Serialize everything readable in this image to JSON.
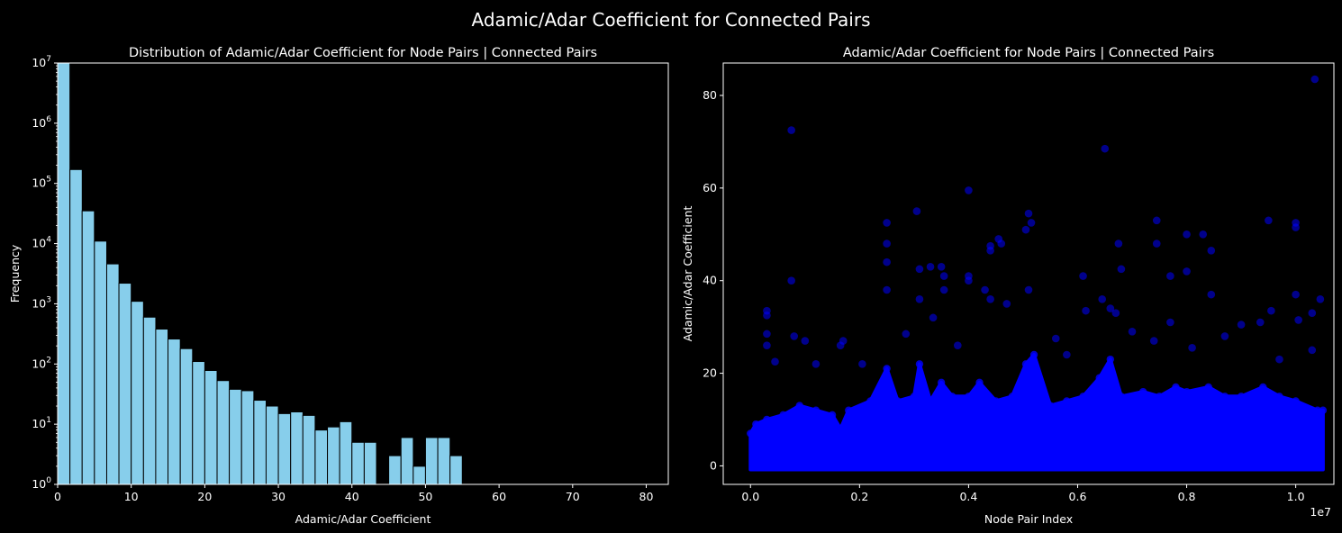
{
  "figure": {
    "suptitle": "Adamic/Adar Coefficient for Connected Pairs",
    "background": "#000000",
    "foreground": "#ffffff"
  },
  "chart_data": [
    {
      "type": "bar",
      "subtype": "histogram",
      "title": "Distribution of Adamic/Adar Coefficient for Node Pairs | Connected Pairs",
      "xlabel": "Adamic/Adar Coefficient",
      "ylabel": "Frequency",
      "xlim": [
        0,
        83
      ],
      "ylim": [
        1,
        10000000
      ],
      "yscale": "log",
      "bar_color": "#87ceeb",
      "edge_color": "#000000",
      "bin_width": 1.67,
      "x_ticks": [
        0,
        10,
        20,
        30,
        40,
        50,
        60,
        70,
        80
      ],
      "y_ticks": [
        {
          "value": 1,
          "base": "10",
          "exp": "0"
        },
        {
          "value": 10,
          "base": "10",
          "exp": "1"
        },
        {
          "value": 100,
          "base": "10",
          "exp": "2"
        },
        {
          "value": 1000,
          "base": "10",
          "exp": "3"
        },
        {
          "value": 10000,
          "base": "10",
          "exp": "4"
        },
        {
          "value": 100000,
          "base": "10",
          "exp": "5"
        },
        {
          "value": 1000000,
          "base": "10",
          "exp": "6"
        },
        {
          "value": 10000000,
          "base": "10",
          "exp": "7"
        }
      ],
      "bins": [
        {
          "x0": 0.0,
          "count": 10000000
        },
        {
          "x0": 1.67,
          "count": 170000
        },
        {
          "x0": 3.33,
          "count": 35000
        },
        {
          "x0": 5.0,
          "count": 11000
        },
        {
          "x0": 6.67,
          "count": 4600
        },
        {
          "x0": 8.33,
          "count": 2200
        },
        {
          "x0": 10.0,
          "count": 1100
        },
        {
          "x0": 11.67,
          "count": 600
        },
        {
          "x0": 13.33,
          "count": 380
        },
        {
          "x0": 15.0,
          "count": 260
        },
        {
          "x0": 16.67,
          "count": 180
        },
        {
          "x0": 18.33,
          "count": 110
        },
        {
          "x0": 20.0,
          "count": 78
        },
        {
          "x0": 21.67,
          "count": 53
        },
        {
          "x0": 23.33,
          "count": 38
        },
        {
          "x0": 25.0,
          "count": 36
        },
        {
          "x0": 26.67,
          "count": 25
        },
        {
          "x0": 28.33,
          "count": 20
        },
        {
          "x0": 30.0,
          "count": 15
        },
        {
          "x0": 31.67,
          "count": 16
        },
        {
          "x0": 33.33,
          "count": 14
        },
        {
          "x0": 35.0,
          "count": 8
        },
        {
          "x0": 36.67,
          "count": 9
        },
        {
          "x0": 38.33,
          "count": 11
        },
        {
          "x0": 40.0,
          "count": 5
        },
        {
          "x0": 41.67,
          "count": 5
        },
        {
          "x0": 45.0,
          "count": 3
        },
        {
          "x0": 46.67,
          "count": 6
        },
        {
          "x0": 48.33,
          "count": 2
        },
        {
          "x0": 50.0,
          "count": 6
        },
        {
          "x0": 51.67,
          "count": 6
        },
        {
          "x0": 53.33,
          "count": 3
        }
      ]
    },
    {
      "type": "scatter",
      "title": "Adamic/Adar Coefficient for Node Pairs | Connected Pairs",
      "xlabel": "Node Pair Index",
      "ylabel": "Adamic/Adar Coefficient",
      "x_offset_label": "1e7",
      "xlim": [
        -0.05,
        1.07
      ],
      "ylim": [
        -4,
        87
      ],
      "point_color": "#0000ff",
      "x_ticks": [
        {
          "value": 0.0,
          "label": "0.0"
        },
        {
          "value": 0.2,
          "label": "0.2"
        },
        {
          "value": 0.4,
          "label": "0.4"
        },
        {
          "value": 0.6,
          "label": "0.6"
        },
        {
          "value": 0.8,
          "label": "0.8"
        },
        {
          "value": 1.0,
          "label": "1.0"
        }
      ],
      "y_ticks": [
        0,
        20,
        40,
        60,
        80
      ],
      "envelope_upper": [
        [
          0.0,
          7
        ],
        [
          0.01,
          9
        ],
        [
          0.03,
          10
        ],
        [
          0.06,
          11
        ],
        [
          0.09,
          13
        ],
        [
          0.12,
          12
        ],
        [
          0.15,
          11
        ],
        [
          0.165,
          8
        ],
        [
          0.18,
          12
        ],
        [
          0.22,
          14
        ],
        [
          0.25,
          21
        ],
        [
          0.27,
          14
        ],
        [
          0.3,
          15
        ],
        [
          0.31,
          22
        ],
        [
          0.33,
          14
        ],
        [
          0.35,
          18
        ],
        [
          0.37,
          15
        ],
        [
          0.4,
          15
        ],
        [
          0.42,
          18
        ],
        [
          0.45,
          14
        ],
        [
          0.48,
          15
        ],
        [
          0.505,
          22
        ],
        [
          0.52,
          24
        ],
        [
          0.55,
          13
        ],
        [
          0.58,
          14
        ],
        [
          0.61,
          15
        ],
        [
          0.64,
          19
        ],
        [
          0.66,
          23
        ],
        [
          0.68,
          15
        ],
        [
          0.72,
          16
        ],
        [
          0.75,
          15
        ],
        [
          0.78,
          17
        ],
        [
          0.8,
          16
        ],
        [
          0.84,
          17
        ],
        [
          0.87,
          15
        ],
        [
          0.9,
          15
        ],
        [
          0.94,
          17
        ],
        [
          0.97,
          15
        ],
        [
          1.0,
          14
        ],
        [
          1.04,
          12
        ],
        [
          1.05,
          12
        ]
      ],
      "outliers": [
        [
          1.035,
          83.5
        ],
        [
          0.075,
          72.5
        ],
        [
          0.65,
          68.5
        ],
        [
          0.4,
          59.5
        ],
        [
          0.305,
          55.0
        ],
        [
          0.51,
          54.5
        ],
        [
          0.515,
          52.5
        ],
        [
          0.505,
          51.0
        ],
        [
          0.25,
          52.5
        ],
        [
          0.25,
          48.0
        ],
        [
          0.25,
          44.0
        ],
        [
          0.745,
          53.0
        ],
        [
          0.95,
          53.0
        ],
        [
          1.0,
          52.5
        ],
        [
          1.0,
          51.5
        ],
        [
          0.8,
          50.0
        ],
        [
          0.83,
          50.0
        ],
        [
          0.455,
          49.0
        ],
        [
          0.46,
          48.0
        ],
        [
          0.44,
          47.5
        ],
        [
          0.44,
          46.5
        ],
        [
          0.675,
          48.0
        ],
        [
          0.745,
          48.0
        ],
        [
          0.845,
          46.5
        ],
        [
          0.68,
          42.5
        ],
        [
          0.8,
          42.0
        ],
        [
          0.77,
          41.0
        ],
        [
          0.31,
          42.5
        ],
        [
          0.33,
          43.0
        ],
        [
          0.35,
          43.0
        ],
        [
          0.355,
          41.0
        ],
        [
          0.4,
          41.0
        ],
        [
          0.4,
          40.0
        ],
        [
          0.61,
          41.0
        ],
        [
          0.075,
          40.0
        ],
        [
          0.51,
          38.0
        ],
        [
          0.43,
          38.0
        ],
        [
          0.355,
          38.0
        ],
        [
          0.25,
          38.0
        ],
        [
          0.31,
          36.0
        ],
        [
          0.44,
          36.0
        ],
        [
          0.47,
          35.0
        ],
        [
          1.0,
          37.0
        ],
        [
          1.045,
          36.0
        ],
        [
          0.845,
          37.0
        ],
        [
          0.645,
          36.0
        ],
        [
          0.66,
          34.0
        ],
        [
          0.955,
          33.5
        ],
        [
          0.03,
          33.5
        ],
        [
          0.03,
          32.5
        ],
        [
          0.335,
          32.0
        ],
        [
          0.615,
          33.5
        ],
        [
          0.67,
          33.0
        ],
        [
          1.03,
          33.0
        ],
        [
          0.9,
          30.5
        ],
        [
          0.77,
          31.0
        ],
        [
          0.935,
          31.0
        ],
        [
          1.005,
          31.5
        ],
        [
          0.08,
          28.0
        ],
        [
          0.03,
          28.5
        ],
        [
          0.03,
          26.0
        ],
        [
          0.1,
          27.0
        ],
        [
          0.17,
          27.0
        ],
        [
          0.165,
          26.0
        ],
        [
          0.285,
          28.5
        ],
        [
          0.87,
          28.0
        ],
        [
          0.74,
          27.0
        ],
        [
          0.56,
          27.5
        ],
        [
          0.045,
          22.5
        ],
        [
          0.12,
          22.0
        ],
        [
          0.205,
          22.0
        ],
        [
          0.38,
          26.0
        ],
        [
          0.58,
          24.0
        ],
        [
          0.7,
          29.0
        ],
        [
          1.03,
          25.0
        ],
        [
          0.97,
          23.0
        ],
        [
          0.81,
          25.5
        ]
      ]
    }
  ]
}
